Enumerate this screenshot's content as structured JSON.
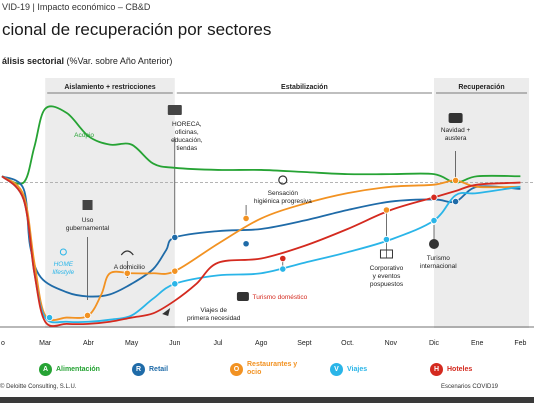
{
  "header": {
    "text": "VID-19 | Impacto económico – CB&D"
  },
  "title": "cional de recuperación por sectores",
  "subtitle": {
    "bold": "álisis sectorial",
    "rest": " (%Var. sobre Año Anterior)"
  },
  "chart_data": {
    "type": "line",
    "x_ticks": [
      "o",
      "Mar",
      "Abr",
      "May",
      "Jun",
      "Jul",
      "Ago",
      "Sept",
      "Oct.",
      "Nov",
      "Dic",
      "Ene",
      "Feb"
    ],
    "x_range": [
      0,
      12
    ],
    "y_range": [
      -10,
      100
    ],
    "phases": [
      {
        "label": "Aislamiento + restricciones",
        "from": 1,
        "to": 4,
        "shaded": true
      },
      {
        "label": "Estabilización",
        "from": 4,
        "to": 10,
        "shaded": false
      },
      {
        "label": "Recuperación",
        "from": 10,
        "to": 12.2,
        "shaded": true
      }
    ],
    "baseline": 58,
    "series": [
      {
        "name": "Alimentación",
        "color": "#26a334",
        "points": [
          [
            0,
            61
          ],
          [
            0.5,
            58
          ],
          [
            0.75,
            75
          ],
          [
            1,
            93
          ],
          [
            1.5,
            91
          ],
          [
            2,
            80
          ],
          [
            2.5,
            76
          ],
          [
            3,
            76
          ],
          [
            3.5,
            67
          ],
          [
            4,
            65
          ],
          [
            5,
            64
          ],
          [
            6,
            64
          ],
          [
            7,
            63
          ],
          [
            8,
            62
          ],
          [
            9,
            62
          ],
          [
            10,
            62
          ],
          [
            10.5,
            58
          ],
          [
            11,
            61
          ],
          [
            12,
            61
          ]
        ]
      },
      {
        "name": "Retail",
        "color": "#1f6ba8",
        "points": [
          [
            0,
            61
          ],
          [
            0.5,
            55
          ],
          [
            0.65,
            28
          ],
          [
            0.9,
            13
          ],
          [
            1.5,
            6
          ],
          [
            2,
            4
          ],
          [
            2.5,
            5
          ],
          [
            3,
            10
          ],
          [
            3.5,
            17
          ],
          [
            3.8,
            26
          ],
          [
            4,
            32
          ],
          [
            5,
            35
          ],
          [
            6,
            36
          ],
          [
            7,
            40
          ],
          [
            8,
            45
          ],
          [
            9,
            49
          ],
          [
            10,
            50
          ],
          [
            10.5,
            49
          ],
          [
            11,
            56
          ],
          [
            12,
            55
          ]
        ]
      },
      {
        "name": "Restaurantes y ocio",
        "color": "#f29222",
        "points": [
          [
            0,
            61
          ],
          [
            0.5,
            52
          ],
          [
            0.75,
            20
          ],
          [
            1,
            -5
          ],
          [
            1.5,
            -6
          ],
          [
            2,
            -5
          ],
          [
            2.3,
            5
          ],
          [
            2.5,
            15
          ],
          [
            3,
            15
          ],
          [
            3.5,
            15
          ],
          [
            4,
            16
          ],
          [
            5,
            29
          ],
          [
            6,
            41
          ],
          [
            7,
            48
          ],
          [
            8,
            53
          ],
          [
            9,
            56
          ],
          [
            10,
            57
          ],
          [
            10.5,
            59
          ],
          [
            11,
            56
          ],
          [
            12,
            56
          ]
        ]
      },
      {
        "name": "Viajes",
        "color": "#2ab5e8",
        "points": [
          [
            0,
            61
          ],
          [
            0.5,
            50
          ],
          [
            0.75,
            15
          ],
          [
            1,
            -6
          ],
          [
            1.5,
            -8
          ],
          [
            2,
            -8
          ],
          [
            2.5,
            -7
          ],
          [
            3,
            -5
          ],
          [
            3.5,
            3
          ],
          [
            4,
            10
          ],
          [
            5,
            14
          ],
          [
            6,
            15
          ],
          [
            7,
            20
          ],
          [
            8,
            25
          ],
          [
            9,
            31
          ],
          [
            10,
            40
          ],
          [
            10.5,
            52
          ],
          [
            11,
            53
          ],
          [
            12,
            56
          ]
        ]
      },
      {
        "name": "Hoteles",
        "color": "#d42a1f",
        "points": [
          [
            0,
            61
          ],
          [
            0.5,
            50
          ],
          [
            0.75,
            15
          ],
          [
            1,
            -8
          ],
          [
            1.5,
            -9
          ],
          [
            2,
            -9
          ],
          [
            2.5,
            -8
          ],
          [
            3,
            -6
          ],
          [
            3.5,
            -4
          ],
          [
            4,
            2
          ],
          [
            4.5,
            10
          ],
          [
            5,
            20
          ],
          [
            6,
            22
          ],
          [
            7,
            28
          ],
          [
            8,
            36
          ],
          [
            9,
            45
          ],
          [
            10,
            51
          ],
          [
            10.5,
            54
          ],
          [
            11,
            57
          ],
          [
            12,
            58
          ]
        ]
      }
    ],
    "annotations": [
      {
        "text": [
          "HORECA,",
          "oficinas,",
          "educación,",
          "tiendas"
        ],
        "icon": "building-icon"
      },
      {
        "text": [
          "Uso",
          "gubernamental"
        ],
        "icon": "government-icon"
      },
      {
        "text": [
          "HOME",
          "lifestyle"
        ],
        "icon": "person-icon"
      },
      {
        "text": [
          "A domicilio"
        ],
        "icon": "wifi-icon"
      },
      {
        "text": [
          "Viajes de",
          "primera necesidad"
        ],
        "icon": "plane-icon"
      },
      {
        "text": [
          "Turismo doméstico"
        ],
        "icon": "map-icon"
      },
      {
        "text": [
          "Sensación",
          "higiénica progresiva"
        ],
        "icon": "virus-icon"
      },
      {
        "text": [
          "Corporativo",
          "y eventos",
          "pospuestos"
        ],
        "icon": "briefcase-icon"
      },
      {
        "text": [
          "Turismo",
          "internacional"
        ],
        "icon": "globe-icon"
      },
      {
        "text": [
          "Navidad +",
          "austera"
        ],
        "icon": "gift-icon"
      },
      {
        "text": [
          "Acopio"
        ],
        "icon": "none"
      }
    ]
  },
  "legend": [
    {
      "label": "Alimentación",
      "color": "#26a334"
    },
    {
      "label": "Retail",
      "color": "#1f6ba8"
    },
    {
      "label": "Restaurantes y ocio",
      "color": "#f29222"
    },
    {
      "label": "Viajes",
      "color": "#2ab5e8"
    },
    {
      "label": "Hoteles",
      "color": "#d42a1f"
    }
  ],
  "footer": {
    "left": "© Deloitte Consulting, S.L.U.",
    "right": "Escenarios COVID19"
  }
}
